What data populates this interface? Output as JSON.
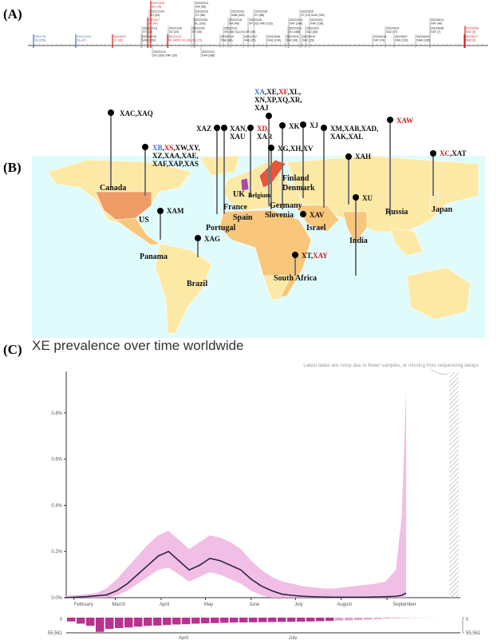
{
  "panels": {
    "a": "(A)",
    "b": "(B)",
    "c": "(C)"
  },
  "timeline": {
    "events": [
      {
        "date": "2021/7/6",
        "label": "XB (355)",
        "color": "#3b6fc4"
      },
      {
        "date": "2021/11/18",
        "label": "XA (47)",
        "color": "#3b6fc4"
      },
      {
        "date": "2021/8/12",
        "label": "XC (42)",
        "color": "#d01c1c"
      },
      {
        "date": "2021/12/10",
        "label": "XAG (193)",
        "color": "#888"
      },
      {
        "date": "2021/12/20",
        "label": "XH (34)",
        "color": "#888"
      },
      {
        "date": "2021/12/13",
        "label": "XT (24)",
        "color": "#888"
      },
      {
        "date": "2021/1/7",
        "label": "XF (47)",
        "color": "#d01c1c"
      },
      {
        "date": "2021/11/8",
        "label": "XD (75)",
        "color": "#d01c1c"
      },
      {
        "date": "2022/1/14",
        "label": "XG (359) XAF (29)",
        "color": "#888"
      },
      {
        "date": "2022/1/19",
        "label": "XE (4957) XJ (96) XS (73)",
        "color": "#d01c1c"
      },
      {
        "date": "2022/1/30",
        "label": "XZ (24)",
        "color": "#888"
      },
      {
        "date": "2022/2/02",
        "label": "XY (30)",
        "color": "#888"
      },
      {
        "date": "2022/2/06",
        "label": "XL (183)",
        "color": "#888"
      },
      {
        "date": "2022/2/10",
        "label": "XT (86)",
        "color": "#888"
      },
      {
        "date": "2022/2/12",
        "label": "XAA (188)",
        "color": "#888"
      },
      {
        "date": "2022/2/13",
        "label": "XW (35)",
        "color": "#888"
      },
      {
        "date": "2022/2/15",
        "label": "XK (38) XQ (10) XR (10)",
        "color": "#888"
      },
      {
        "date": "2022/2/18",
        "label": "XM (48)",
        "color": "#888"
      },
      {
        "date": "2022/2/19",
        "label": "XAE (86)",
        "color": "#888"
      },
      {
        "date": "2022/2/22",
        "label": "XAE (25)",
        "color": "#888"
      },
      {
        "date": "2022/2/25",
        "label": "XAB (163)",
        "color": "#888"
      },
      {
        "date": "2022/2/26",
        "label": "XP (23) XAK (133)",
        "color": "#888"
      },
      {
        "date": "2022/2/28",
        "label": "XV (86)",
        "color": "#888"
      },
      {
        "date": "2022/3/05",
        "label": "XAQ (149)",
        "color": "#888"
      },
      {
        "date": "2022/3/11",
        "label": "XAF (36)",
        "color": "#888"
      },
      {
        "date": "2022/3/13",
        "label": "XU (168)",
        "color": "#888"
      },
      {
        "date": "2022/3/16",
        "label": "XAT (148)",
        "color": "#888"
      },
      {
        "date": "2022/3/19",
        "label": "XAC (29)",
        "color": "#888"
      },
      {
        "date": "2022/3/22",
        "label": "XAJ (28)",
        "color": "#888"
      },
      {
        "date": "2022/3/25",
        "label": "XT (13) XAN (784)",
        "color": "#888"
      },
      {
        "date": "2022/3/31",
        "label": "XAF (138)",
        "color": "#888"
      },
      {
        "date": "2022/5/16",
        "label": "XAY (79)",
        "color": "#888"
      },
      {
        "date": "2022/5/24",
        "label": "XAZ (57)",
        "color": "#888"
      },
      {
        "date": "2022/5/27",
        "label": "XAS (115)",
        "color": "#888"
      },
      {
        "date": "2022/6/03",
        "label": "XAW (135)",
        "color": "#888"
      },
      {
        "date": "2022/6/08",
        "label": "XAT (7)",
        "color": "#888"
      },
      {
        "date": "2022/6/14",
        "label": "XAY (40)",
        "color": "#888"
      },
      {
        "date": "2022/6/27",
        "label": "XAW (5)",
        "color": "#d01c1c"
      },
      {
        "date": "2022/6/28",
        "label": "XAV (5)",
        "color": "#d01c1c"
      }
    ]
  },
  "map": {
    "colors": {
      "ocean": "#e0fbfb",
      "land": "#fde9a6",
      "mid": "#f9c77c",
      "high": "#ee9b66",
      "top": "#e8553a"
    },
    "annotations": [
      {
        "parts": [
          {
            "t": "XAC,XAQ"
          }
        ]
      },
      {
        "parts": [
          {
            "t": "XB",
            "c": "blue"
          },
          {
            "t": ","
          },
          {
            "t": "XS",
            "c": "red"
          },
          {
            "t": ",XW,XY,"
          },
          {
            "t": "\nXZ,XAA,XAE,\nXAF,XAP,XAS"
          }
        ]
      },
      {
        "parts": [
          {
            "t": "XAM"
          }
        ]
      },
      {
        "parts": [
          {
            "t": "XAG"
          }
        ]
      },
      {
        "parts": [
          {
            "t": "XAZ"
          }
        ]
      },
      {
        "parts": [
          {
            "t": "XAN,\nXAU"
          }
        ]
      },
      {
        "parts": [
          {
            "t": "XD",
            "c": "red"
          },
          {
            "t": ",\nXAR"
          }
        ]
      },
      {
        "parts": [
          {
            "t": "XA",
            "c": "blue"
          },
          {
            "t": ",XE,"
          },
          {
            "t": "XF",
            "c": "red"
          },
          {
            "t": ",XL,\nXN,XP,XQ,XR,\nXAJ"
          }
        ]
      },
      {
        "parts": [
          {
            "t": "XK"
          }
        ]
      },
      {
        "parts": [
          {
            "t": "XG,XH,XV"
          }
        ]
      },
      {
        "parts": [
          {
            "t": "XJ"
          }
        ]
      },
      {
        "parts": [
          {
            "t": "XM,XAB,XAD,\nXAK,XAL"
          }
        ]
      },
      {
        "parts": [
          {
            "t": "XAH"
          }
        ]
      },
      {
        "parts": [
          {
            "t": "XAV"
          }
        ]
      },
      {
        "parts": [
          {
            "t": "XU"
          }
        ]
      },
      {
        "parts": [
          {
            "t": "XT,"
          },
          {
            "t": "XAY",
            "c": "red"
          }
        ]
      },
      {
        "parts": [
          {
            "t": "XAW",
            "c": "red"
          }
        ]
      },
      {
        "parts": [
          {
            "t": "XC",
            "c": "red"
          },
          {
            "t": ",XAT"
          }
        ]
      }
    ],
    "countries": [
      "Canada",
      "US",
      "Panama",
      "Brazil",
      "UK",
      "Belgium",
      "France",
      "Spain",
      "Portugal",
      "Denmark",
      "Finland",
      "Germany",
      "Slovenia",
      "Israel",
      "India",
      "Russia",
      "Japan",
      "South Africa"
    ]
  },
  "chart_data": {
    "type": "area",
    "title": "XE prevalence over time worldwide",
    "note": "Latest dates are noisy due to fewer samples, or missing from sequencing delays",
    "xlabel": "",
    "ylabel": "",
    "x_ticks": [
      "February",
      "March",
      "April",
      "May",
      "June",
      "July",
      "August",
      "September"
    ],
    "y_ticks": [
      "0.0%",
      "0.2%",
      "0.4%",
      "0.6%",
      "0.8%"
    ],
    "ylim": [
      0,
      0.95
    ],
    "x_days": [
      26,
      33,
      40,
      47,
      54,
      61,
      68,
      75,
      82,
      89,
      96,
      103,
      110,
      117,
      124,
      131,
      138,
      145,
      152,
      159,
      166,
      173,
      180,
      187,
      194,
      201,
      208,
      215,
      222,
      229,
      236,
      243,
      250,
      254,
      257
    ],
    "series": [
      {
        "name": "XE prevalence (%)",
        "values": [
          0,
          0.002,
          0.004,
          0.008,
          0.012,
          0.03,
          0.06,
          0.1,
          0.14,
          0.18,
          0.2,
          0.16,
          0.12,
          0.14,
          0.17,
          0.16,
          0.14,
          0.12,
          0.08,
          0.05,
          0.03,
          0.015,
          0.01,
          0.006,
          0.004,
          0.003,
          0.002,
          0.002,
          0.002,
          0.002,
          0.003,
          0.004,
          0.006,
          0.01,
          0.02
        ]
      },
      {
        "name": "upper",
        "values": [
          0.01,
          0.01,
          0.015,
          0.02,
          0.04,
          0.08,
          0.13,
          0.18,
          0.23,
          0.27,
          0.29,
          0.25,
          0.21,
          0.24,
          0.27,
          0.26,
          0.24,
          0.21,
          0.16,
          0.12,
          0.09,
          0.07,
          0.06,
          0.05,
          0.045,
          0.04,
          0.04,
          0.045,
          0.05,
          0.055,
          0.06,
          0.07,
          0.12,
          0.35,
          0.9
        ]
      },
      {
        "name": "lower",
        "values": [
          0,
          0,
          0,
          0,
          0,
          0.01,
          0.03,
          0.06,
          0.09,
          0.12,
          0.13,
          0.1,
          0.07,
          0.09,
          0.11,
          0.1,
          0.08,
          0.06,
          0.03,
          0.01,
          0,
          0,
          0,
          0,
          0,
          0,
          0,
          0,
          0,
          0,
          0,
          0,
          0,
          0,
          0
        ]
      }
    ],
    "samples": {
      "min_label": "0",
      "max_label": "55,561",
      "ticks": [
        "April",
        "July"
      ],
      "values": [
        14000,
        22000,
        30000,
        52000,
        41000,
        38000,
        36000,
        33000,
        30000,
        29000,
        27000,
        25000,
        24000,
        22000,
        21000,
        20000,
        19000,
        18000,
        17500,
        17000,
        16500,
        16000,
        15500,
        15000,
        14500,
        14000,
        13000,
        12000,
        11000,
        10000,
        9000,
        7000,
        5000,
        3500,
        2500,
        1500,
        900,
        500,
        250,
        100
      ]
    }
  }
}
